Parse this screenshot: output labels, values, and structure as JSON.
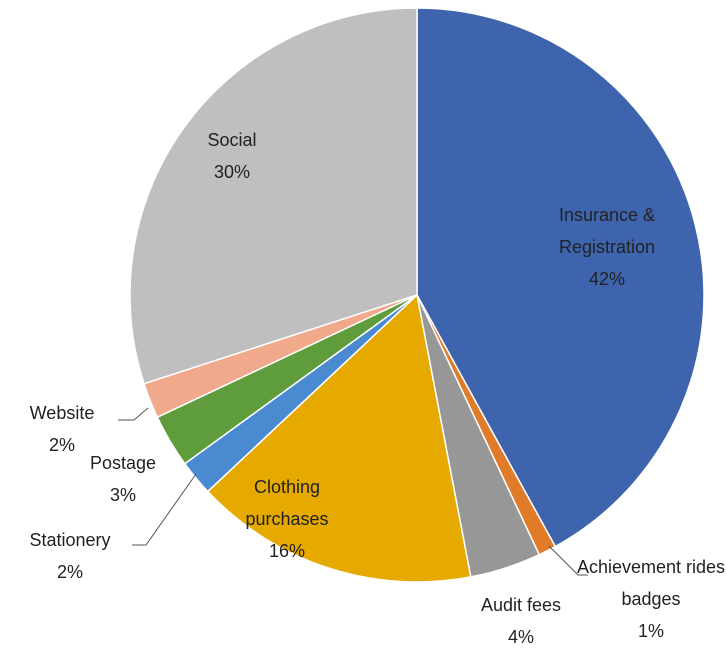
{
  "chart_data": {
    "type": "pie",
    "categories": [
      "Insurance & Registration",
      "Achievement rides badges",
      "Audit fees",
      "Clothing purchases",
      "Stationery",
      "Postage",
      "Website",
      "Social"
    ],
    "values": [
      42,
      1,
      4,
      16,
      2,
      3,
      2,
      30
    ],
    "value_labels": [
      "42%",
      "1%",
      "4%",
      "16%",
      "2%",
      "3%",
      "2%",
      "30%"
    ],
    "colors": [
      "#3d64ad",
      "#e07b29",
      "#979797",
      "#e5a900",
      "#4a8ad1",
      "#5e9c3c",
      "#f0a98a",
      "#bfbfbf"
    ]
  }
}
